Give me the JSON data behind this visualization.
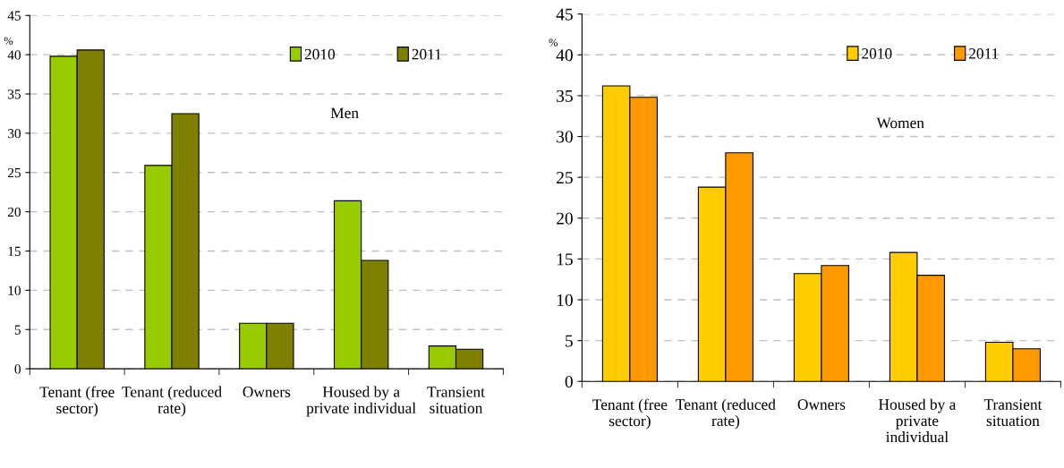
{
  "chart_data": [
    {
      "type": "bar",
      "ylabel": "%",
      "annotations": [
        "Men"
      ],
      "categories": [
        "Tenant (free\nsector)",
        "Tenant (reduced\nrate)",
        "Owners",
        "Housed by a\nprivate individual",
        "Transient\nsituation"
      ],
      "series": [
        {
          "name": "2010",
          "color": "#99cc00",
          "values": [
            39.8,
            25.9,
            5.8,
            21.4,
            2.9
          ]
        },
        {
          "name": "2011",
          "color": "#808000",
          "values": [
            40.6,
            32.5,
            5.8,
            13.8,
            2.5
          ]
        }
      ],
      "ylim": [
        0,
        45
      ],
      "yticks": [
        0,
        5,
        10,
        15,
        20,
        25,
        30,
        35,
        40,
        45
      ],
      "grid": "y",
      "legend": "top right"
    },
    {
      "type": "bar",
      "ylabel": "%",
      "annotations": [
        "Women"
      ],
      "categories": [
        "Tenant (free\nsector)",
        "Tenant (reduced\nrate)",
        "Owners",
        "Housed by a\nprivate\nindividual",
        "Transient\nsituation"
      ],
      "series": [
        {
          "name": "2010",
          "color": "#ffcc00",
          "values": [
            36.2,
            23.8,
            13.2,
            15.8,
            4.8
          ]
        },
        {
          "name": "2011",
          "color": "#ff9900",
          "values": [
            34.8,
            28.0,
            14.2,
            13.0,
            4.0
          ]
        }
      ],
      "ylim": [
        0,
        45
      ],
      "yticks": [
        0,
        5,
        10,
        15,
        20,
        25,
        30,
        35,
        40,
        45
      ],
      "grid": "y",
      "legend": "top right"
    }
  ]
}
